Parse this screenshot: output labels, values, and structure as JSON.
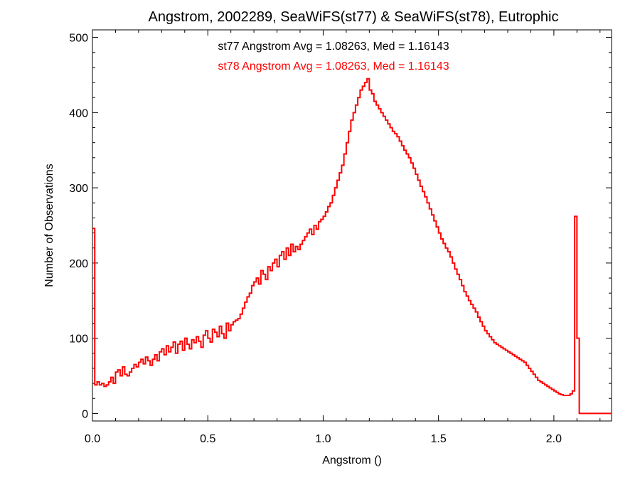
{
  "chart_data": {
    "type": "step-histogram",
    "title": "Angstrom, 2002289, SeaWiFS(st77) & SeaWiFS(st78), Eutrophic",
    "xlabel": "Angstrom ()",
    "ylabel": "Number of Observations",
    "xlim": [
      0.0,
      2.25
    ],
    "ylim": [
      -10,
      510
    ],
    "x_ticks": [
      0.0,
      0.5,
      1.0,
      1.5,
      2.0
    ],
    "x_tick_labels": [
      "0.0",
      "0.5",
      "1.0",
      "1.5",
      "2.0"
    ],
    "y_ticks": [
      0,
      100,
      200,
      300,
      400,
      500
    ],
    "y_tick_labels": [
      "0",
      "100",
      "200",
      "300",
      "400",
      "500"
    ],
    "bin_width": 0.01,
    "annotations": [
      {
        "text": "st77 Angstrom Avg = 1.08263, Med = 1.16143",
        "color": "#000000"
      },
      {
        "text": "st78 Angstrom Avg = 1.08263, Med = 1.16143",
        "color": "#ff0000"
      }
    ],
    "series": [
      {
        "color": "#ff0000",
        "x_start": 0.0,
        "values": [
          246,
          38,
          42,
          38,
          40,
          36,
          38,
          42,
          48,
          40,
          55,
          58,
          50,
          62,
          52,
          50,
          55,
          60,
          65,
          62,
          68,
          72,
          66,
          75,
          70,
          64,
          72,
          78,
          70,
          82,
          86,
          78,
          90,
          82,
          88,
          95,
          80,
          92,
          96,
          84,
          100,
          92,
          86,
          98,
          94,
          102,
          96,
          88,
          104,
          110,
          100,
          95,
          112,
          108,
          102,
          116,
          106,
          100,
          120,
          110,
          118,
          122,
          124,
          126,
          132,
          140,
          148,
          155,
          160,
          170,
          175,
          180,
          172,
          190,
          185,
          178,
          195,
          190,
          200,
          205,
          195,
          210,
          215,
          205,
          220,
          210,
          225,
          215,
          222,
          218,
          225,
          230,
          235,
          240,
          245,
          238,
          250,
          245,
          255,
          258,
          262,
          268,
          275,
          280,
          290,
          300,
          310,
          320,
          330,
          345,
          360,
          375,
          390,
          400,
          410,
          420,
          430,
          435,
          440,
          445,
          430,
          425,
          415,
          410,
          405,
          400,
          395,
          390,
          385,
          380,
          375,
          372,
          368,
          362,
          356,
          350,
          345,
          340,
          333,
          326,
          318,
          310,
          302,
          295,
          288,
          280,
          272,
          264,
          256,
          248,
          240,
          232,
          226,
          220,
          215,
          208,
          200,
          192,
          185,
          178,
          170,
          162,
          156,
          150,
          145,
          140,
          135,
          128,
          122,
          116,
          110,
          106,
          102,
          98,
          94,
          92,
          90,
          88,
          86,
          84,
          82,
          80,
          78,
          76,
          74,
          72,
          70,
          68,
          64,
          60,
          56,
          52,
          48,
          44,
          42,
          40,
          38,
          36,
          34,
          32,
          30,
          28,
          26,
          25,
          24,
          24,
          24,
          26,
          30,
          262,
          100,
          0,
          0,
          0,
          0,
          0,
          0,
          0,
          0,
          0,
          0,
          0,
          0
        ]
      }
    ]
  }
}
